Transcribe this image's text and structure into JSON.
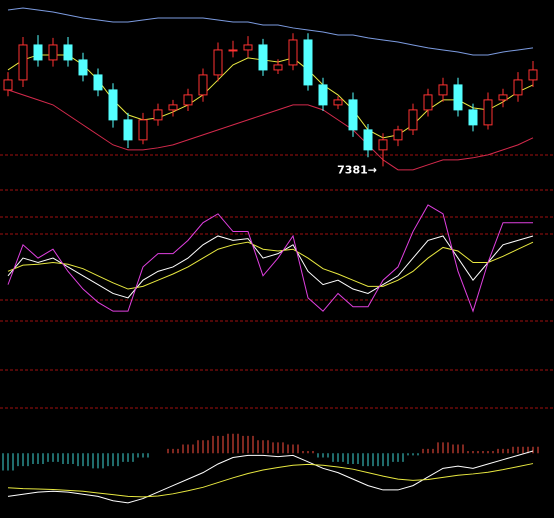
{
  "chart_data": [
    {
      "type": "candlestick",
      "open": [
        7794,
        7848,
        8037,
        7956,
        8037,
        7956,
        7875,
        7794,
        7632,
        7524,
        7632,
        7686,
        7713,
        7767,
        7875,
        8010,
        8010,
        8037,
        7902,
        7929,
        8064,
        7821,
        7713,
        7740,
        7578,
        7470,
        7524,
        7578,
        7686,
        7767,
        7821,
        7686,
        7605,
        7740,
        7767,
        7848
      ],
      "high": [
        7890,
        8080,
        8090,
        8075,
        8080,
        7995,
        7910,
        7830,
        7670,
        7670,
        7720,
        7740,
        7800,
        7910,
        8050,
        8060,
        8085,
        8070,
        7960,
        8100,
        8100,
        7860,
        7760,
        7780,
        7610,
        7560,
        7600,
        7720,
        7800,
        7860,
        7860,
        7720,
        7780,
        7800,
        7890,
        7950
      ],
      "low": [
        7760,
        7810,
        7920,
        7920,
        7920,
        7840,
        7760,
        7590,
        7480,
        7500,
        7600,
        7650,
        7680,
        7730,
        7840,
        7970,
        7970,
        7870,
        7880,
        7900,
        7790,
        7680,
        7690,
        7540,
        7430,
        7381,
        7490,
        7550,
        7650,
        7730,
        7650,
        7570,
        7580,
        7700,
        7730,
        7810
      ],
      "close": [
        7848,
        8037,
        7956,
        8037,
        7956,
        7875,
        7794,
        7632,
        7524,
        7632,
        7686,
        7713,
        7767,
        7875,
        8010,
        8010,
        8037,
        7902,
        7929,
        8064,
        7821,
        7713,
        7740,
        7578,
        7470,
        7524,
        7578,
        7686,
        7767,
        7821,
        7686,
        7605,
        7740,
        7767,
        7848,
        7902
      ],
      "up_color": "#ff3232",
      "down_color": "#54ffff",
      "series": [
        {
          "color": "#7c9be0",
          "values": [
            8226,
            8237,
            8226,
            8215,
            8199,
            8183,
            8172,
            8161,
            8161,
            8172,
            8183,
            8183,
            8183,
            8183,
            8172,
            8161,
            8161,
            8145,
            8145,
            8129,
            8118,
            8107,
            8091,
            8091,
            8075,
            8064,
            8053,
            8037,
            8021,
            8010,
            7999,
            7983,
            7983,
            7999,
            8010,
            8021
          ]
        },
        {
          "color": "#d42a4c",
          "values": [
            7794,
            7767,
            7740,
            7713,
            7659,
            7605,
            7551,
            7497,
            7470,
            7470,
            7481,
            7497,
            7524,
            7551,
            7578,
            7605,
            7632,
            7659,
            7686,
            7713,
            7713,
            7686,
            7632,
            7578,
            7497,
            7416,
            7362,
            7362,
            7389,
            7416,
            7416,
            7427,
            7443,
            7470,
            7497,
            7535
          ]
        },
        {
          "color": "#e8e840",
          "values": [
            7902,
            7956,
            7983,
            7983,
            7983,
            7929,
            7848,
            7740,
            7659,
            7632,
            7643,
            7675,
            7713,
            7767,
            7848,
            7929,
            7967,
            7956,
            7945,
            7967,
            7902,
            7821,
            7767,
            7686,
            7578,
            7535,
            7551,
            7605,
            7686,
            7740,
            7740,
            7697,
            7686,
            7729,
            7783,
            7821
          ]
        }
      ],
      "ylim": [
        7280,
        8280
      ],
      "annotation": "7381→"
    },
    {
      "type": "line",
      "series": [
        {
          "color": "#ffffff",
          "values": [
            40,
            60,
            55,
            60,
            50,
            40,
            30,
            20,
            15,
            35,
            45,
            50,
            60,
            75,
            85,
            80,
            82,
            60,
            65,
            75,
            45,
            30,
            35,
            25,
            20,
            30,
            40,
            60,
            80,
            85,
            60,
            35,
            55,
            75,
            80,
            85
          ]
        },
        {
          "color": "#e8e840",
          "values": [
            45,
            52,
            53,
            55,
            53,
            48,
            40,
            32,
            25,
            28,
            35,
            42,
            50,
            60,
            70,
            75,
            78,
            70,
            68,
            70,
            60,
            48,
            42,
            35,
            28,
            28,
            35,
            45,
            60,
            72,
            68,
            55,
            55,
            62,
            70,
            78
          ]
        },
        {
          "color": "#e040e0",
          "values": [
            30,
            75,
            60,
            70,
            45,
            25,
            10,
            0,
            0,
            50,
            65,
            65,
            80,
            100,
            110,
            90,
            90,
            40,
            60,
            85,
            15,
            0,
            20,
            5,
            5,
            35,
            50,
            90,
            120,
            110,
            45,
            0,
            55,
            100,
            100,
            100
          ]
        }
      ],
      "ylim": [
        -10,
        120
      ]
    },
    {
      "type": "macd",
      "values": [
        -40,
        -30,
        -25,
        -20,
        -25,
        -30,
        -35,
        -30,
        -20,
        -10,
        0,
        10,
        20,
        30,
        40,
        45,
        40,
        30,
        25,
        20,
        5,
        -10,
        -20,
        -25,
        -30,
        -30,
        -20,
        -5,
        10,
        25,
        20,
        5,
        5,
        10,
        15,
        15
      ],
      "up_color": "#ff5040",
      "down_color": "#40d8d8",
      "series": [
        {
          "color": "#ffffff",
          "values": [
            -100,
            -95,
            -90,
            -88,
            -90,
            -95,
            -100,
            -110,
            -115,
            -105,
            -90,
            -75,
            -60,
            -45,
            -25,
            -10,
            -5,
            -5,
            -8,
            -5,
            -20,
            -35,
            -45,
            -60,
            -75,
            -85,
            -85,
            -75,
            -55,
            -35,
            -30,
            -35,
            -25,
            -15,
            -5,
            5
          ]
        },
        {
          "color": "#e8e840",
          "values": [
            -80,
            -82,
            -83,
            -84,
            -86,
            -88,
            -92,
            -96,
            -100,
            -101,
            -99,
            -94,
            -87,
            -79,
            -68,
            -57,
            -47,
            -39,
            -33,
            -28,
            -26,
            -28,
            -32,
            -37,
            -45,
            -53,
            -60,
            -63,
            -61,
            -56,
            -51,
            -48,
            -44,
            -38,
            -31,
            -24
          ]
        }
      ],
      "ylim": [
        -150,
        100
      ]
    }
  ]
}
